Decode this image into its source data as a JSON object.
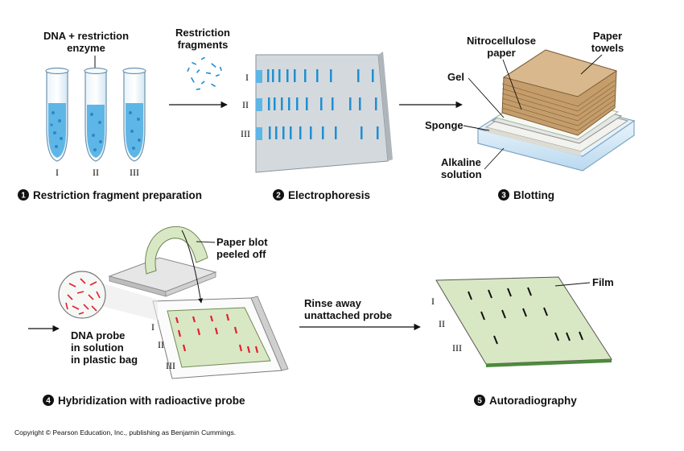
{
  "copyright": "Copyright © Pearson Education, Inc., publishing as Benjamin Cummings.",
  "panel1": {
    "step_number": "1",
    "caption": "Restriction fragment preparation",
    "label_line1": "DNA + restriction",
    "label_line2": "enzyme",
    "tube_labels": [
      "I",
      "II",
      "III"
    ]
  },
  "panel2": {
    "step_number": "2",
    "caption": "Electrophoresis",
    "label_line1": "Restriction",
    "label_line2": "fragments",
    "lane_labels": [
      "I",
      "II",
      "III"
    ]
  },
  "panel3": {
    "step_number": "3",
    "caption": "Blotting",
    "nitro_line1": "Nitrocellulose",
    "nitro_line2": "paper",
    "towels_line1": "Paper",
    "towels_line2": "towels",
    "gel": "Gel",
    "sponge": "Sponge",
    "alkaline_line1": "Alkaline",
    "alkaline_line2": "solution"
  },
  "panel4": {
    "step_number": "4",
    "caption": "Hybridization with radioactive probe",
    "blot_line1": "Paper blot",
    "blot_line2": "peeled off",
    "probe_line1": "DNA probe",
    "probe_line2": "in solution",
    "probe_line3": "in plastic bag",
    "lane_labels": [
      "I",
      "II",
      "III"
    ]
  },
  "panel5": {
    "step_number": "5",
    "caption": "Autoradiography",
    "rinse_line1": "Rinse away",
    "rinse_line2": "unattached probe",
    "film": "Film",
    "lane_labels": [
      "I",
      "II",
      "III"
    ]
  },
  "colors": {
    "gel_blue": "#1f8fd1",
    "probe_red": "#e02030",
    "film_green": "#d9e8c4",
    "towel_tan": "#d8b88c"
  }
}
